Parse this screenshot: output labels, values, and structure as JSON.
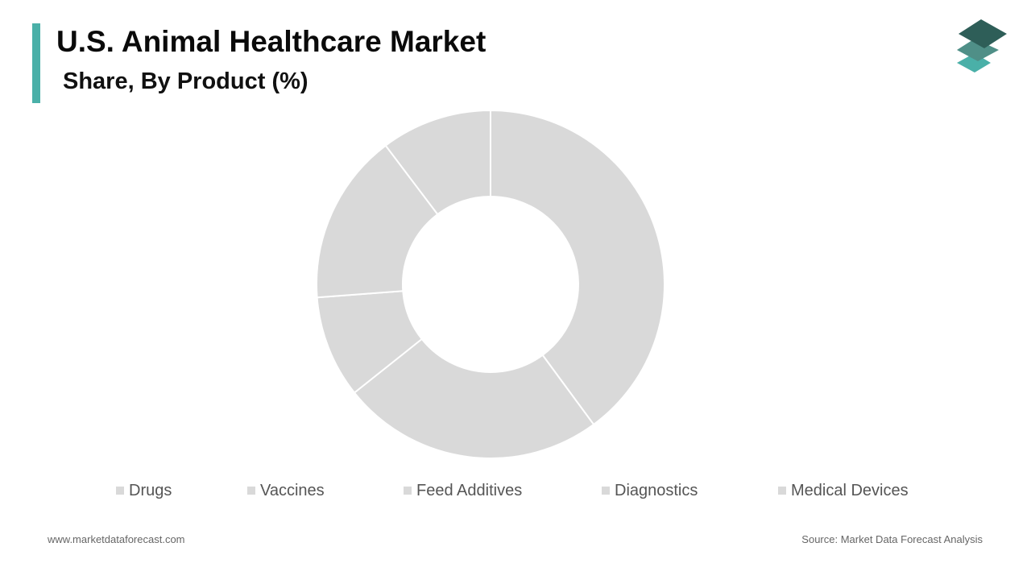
{
  "header": {
    "title": "U.S. Animal Healthcare Market",
    "subtitle": "Share, By Product (%)"
  },
  "logo": {
    "icon": "stacked-layers-logo-icon"
  },
  "colors": {
    "accent": "#4ab0a8",
    "slice": "#d9d9d9",
    "slice_border": "#ffffff",
    "logo_top": "#2e5e58",
    "logo_mid": "#4f8f87",
    "logo_bottom": "#4ab0a8"
  },
  "chart_data": {
    "type": "pie",
    "donut": true,
    "categories": [
      "Drugs",
      "Vaccines",
      "Feed Additives",
      "Diagnostics",
      "Medical Devices"
    ],
    "values": [
      39.9,
      24.4,
      9.5,
      15.9,
      10.3
    ],
    "legend_position": "bottom"
  },
  "footer": {
    "website": "www.marketdataforecast.com",
    "source": "Source: Market Data Forecast Analysis"
  }
}
